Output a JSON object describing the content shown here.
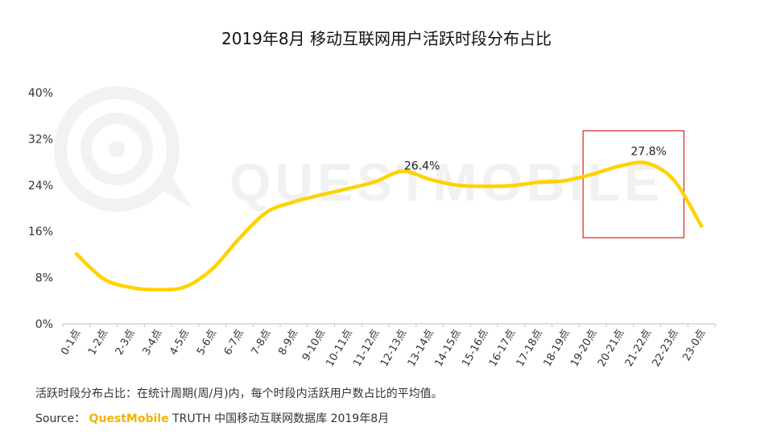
{
  "title": "2019年8月 移动互联网用户活跃时段分布占比",
  "watermark": "QUESTMOBILE",
  "footer": {
    "note": "活跃时段分布占比：在统计周期(周/月)内，每个时段内活跃用户数占比的平均值。",
    "source_label": "Source：",
    "brand": "QuestMobile",
    "source_rest": "TRUTH 中国移动互联网数据库 2019年8月"
  },
  "colors": {
    "line": "#FFD200",
    "highlight_box": "#D9201F",
    "axis": "#bfbfbf"
  },
  "chart_data": {
    "type": "line",
    "categories": [
      "0-1点",
      "1-2点",
      "2-3点",
      "3-4点",
      "4-5点",
      "5-6点",
      "6-7点",
      "7-8点",
      "8-9点",
      "9-10点",
      "10-11点",
      "11-12点",
      "12-13点",
      "13-14点",
      "14-15点",
      "15-16点",
      "16-17点",
      "17-18点",
      "18-19点",
      "19-20点",
      "20-21点",
      "21-22点",
      "22-23点",
      "23-0点"
    ],
    "values": [
      0.121,
      0.078,
      0.063,
      0.059,
      0.064,
      0.095,
      0.148,
      0.193,
      0.211,
      0.223,
      0.234,
      0.246,
      0.264,
      0.25,
      0.24,
      0.238,
      0.239,
      0.245,
      0.248,
      0.259,
      0.273,
      0.278,
      0.248,
      0.169
    ],
    "ylim": [
      0,
      0.4
    ],
    "yticks": [
      "0%",
      "8%",
      "16%",
      "24%",
      "32%",
      "40%"
    ],
    "ytick_values": [
      0,
      0.08,
      0.16,
      0.24,
      0.32,
      0.4
    ],
    "annotations": [
      {
        "index": 12,
        "label": "26.4%"
      },
      {
        "index": 21,
        "label": "27.8%"
      }
    ],
    "highlight_range": [
      19,
      22
    ],
    "grid": false
  }
}
